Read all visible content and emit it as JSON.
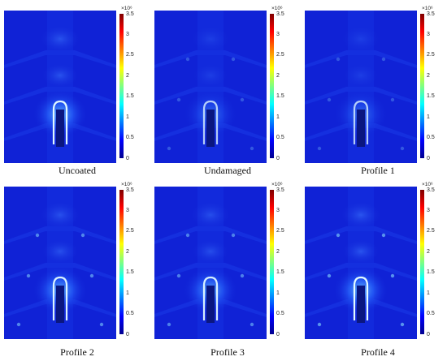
{
  "figure": {
    "colorbar": {
      "exponent_label": "×10⁶",
      "ticks": [
        "3.5",
        "3",
        "2.5",
        "2",
        "1.5",
        "1",
        "0.5",
        "0"
      ],
      "colormap": [
        "#7f0000",
        "#ff0000",
        "#ff8000",
        "#ffff00",
        "#80ff80",
        "#00ffff",
        "#0080ff",
        "#0000ff",
        "#00008f"
      ],
      "background_color": "#1022d6"
    },
    "panels": [
      {
        "caption": "Uncoated",
        "intensity": 0.9
      },
      {
        "caption": "Undamaged",
        "intensity": 0.45
      },
      {
        "caption": "Profile 1",
        "intensity": 0.45
      },
      {
        "caption": "Profile 2",
        "intensity": 0.85
      },
      {
        "caption": "Profile 3",
        "intensity": 0.8
      },
      {
        "caption": "Profile 4",
        "intensity": 0.95
      }
    ]
  }
}
